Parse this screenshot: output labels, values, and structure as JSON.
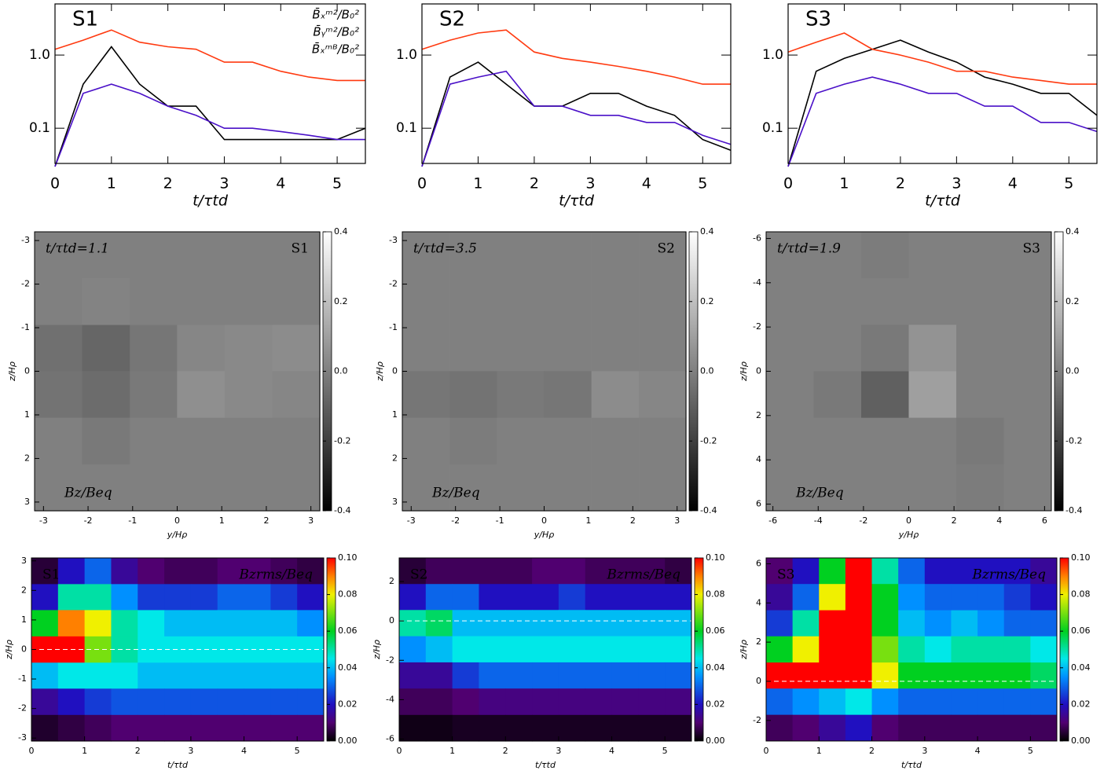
{
  "chart_data": [
    {
      "type": "line",
      "label": "S1",
      "xlabel": "t/τtd",
      "log_y": true,
      "xlim": [
        0,
        5.5
      ],
      "ylim": [
        0.033,
        5
      ],
      "xticks": [
        0,
        1,
        2,
        3,
        4,
        5
      ],
      "yticks": [
        0.1,
        {
          "value": 1,
          "label": "1.0"
        }
      ],
      "x": [
        0,
        0.5,
        1,
        1.5,
        2,
        2.5,
        3,
        3.5,
        4,
        4.5,
        5,
        5.5
      ],
      "series": [
        {
          "name": "B̄ₓᵐ²/B₀²",
          "color": "#000000",
          "values": [
            0.03,
            0.4,
            1.3,
            0.4,
            0.2,
            0.2,
            0.07,
            0.07,
            0.07,
            0.07,
            0.07,
            0.1
          ]
        },
        {
          "name": "B̄ᵧᵐ²/B₀²",
          "color": "#ff3a10",
          "values": [
            1.2,
            1.6,
            2.2,
            1.5,
            1.3,
            1.2,
            0.8,
            0.8,
            0.6,
            0.5,
            0.45,
            0.45
          ]
        },
        {
          "name": "B̄ₓᵐᴮ/B₀²",
          "color": "#4a10c8",
          "values": [
            0.03,
            0.3,
            0.4,
            0.3,
            0.2,
            0.15,
            0.1,
            0.1,
            0.09,
            0.08,
            0.07,
            0.07
          ]
        }
      ]
    },
    {
      "type": "line",
      "label": "S2",
      "xlabel": "t/τtd",
      "log_y": true,
      "xlim": [
        0,
        5.5
      ],
      "ylim": [
        0.033,
        5
      ],
      "xticks": [
        0,
        1,
        2,
        3,
        4,
        5
      ],
      "yticks": [
        0.1,
        {
          "value": 1,
          "label": "1.0"
        }
      ],
      "x": [
        0,
        0.5,
        1,
        1.5,
        2,
        2.5,
        3,
        3.5,
        4,
        4.5,
        5,
        5.5
      ],
      "series": [
        {
          "color": "#000000",
          "values": [
            0.03,
            0.5,
            0.8,
            0.4,
            0.2,
            0.2,
            0.3,
            0.3,
            0.2,
            0.15,
            0.07,
            0.05
          ]
        },
        {
          "color": "#ff3a10",
          "values": [
            1.2,
            1.6,
            2.0,
            2.2,
            1.1,
            0.9,
            0.8,
            0.7,
            0.6,
            0.5,
            0.4,
            0.4
          ]
        },
        {
          "color": "#4a10c8",
          "values": [
            0.03,
            0.4,
            0.5,
            0.6,
            0.2,
            0.2,
            0.15,
            0.15,
            0.12,
            0.12,
            0.08,
            0.06
          ]
        }
      ]
    },
    {
      "type": "line",
      "label": "S3",
      "xlabel": "t/τtd",
      "log_y": true,
      "xlim": [
        0,
        5.5
      ],
      "ylim": [
        0.033,
        5
      ],
      "xticks": [
        0,
        1,
        2,
        3,
        4,
        5
      ],
      "yticks": [
        0.1,
        {
          "value": 1,
          "label": "1.0"
        }
      ],
      "x": [
        0,
        0.5,
        1,
        1.5,
        2,
        2.5,
        3,
        3.5,
        4,
        4.5,
        5,
        5.5
      ],
      "series": [
        {
          "color": "#000000",
          "values": [
            0.03,
            0.6,
            0.9,
            1.2,
            1.6,
            1.1,
            0.8,
            0.5,
            0.4,
            0.3,
            0.3,
            0.15
          ]
        },
        {
          "color": "#ff3a10",
          "values": [
            1.1,
            1.5,
            2.0,
            1.2,
            1.0,
            0.8,
            0.6,
            0.6,
            0.5,
            0.45,
            0.4,
            0.4
          ]
        },
        {
          "color": "#4a10c8",
          "values": [
            0.03,
            0.3,
            0.4,
            0.5,
            0.4,
            0.3,
            0.3,
            0.2,
            0.2,
            0.12,
            0.12,
            0.09
          ]
        }
      ]
    },
    {
      "type": "heatmap",
      "label": "S1",
      "label_position": "top-right",
      "annotation": "t/τtd=1.1",
      "field_label": "Bz/Beq",
      "field_label_position": "bottom-left",
      "xlabel": "y/Hρ",
      "ylabel": "z/Hρ",
      "colormap": "gray",
      "xlim": [
        -3.2,
        3.2
      ],
      "ylim": [
        3.2,
        -3.2
      ],
      "xticks": [
        -3,
        -2,
        -1,
        0,
        1,
        2,
        3
      ],
      "yticks": [
        -3,
        -2,
        -1,
        0,
        1,
        2,
        3
      ],
      "clim": [
        -0.4,
        0.4
      ],
      "cticks": [
        0.4,
        0.2,
        {
          "value": 0,
          "label": "0.0"
        },
        -0.2,
        -0.4
      ],
      "x": [
        -2.67,
        -1.6,
        -0.53,
        0.53,
        1.6,
        2.67
      ],
      "y": [
        -2.67,
        -1.6,
        -0.53,
        0.53,
        1.6,
        2.67
      ],
      "z": [
        [
          0,
          0,
          0,
          0,
          0,
          0
        ],
        [
          0,
          0.01,
          0,
          0,
          0,
          0
        ],
        [
          -0.05,
          -0.08,
          -0.03,
          0.02,
          0.03,
          0.04
        ],
        [
          -0.04,
          -0.06,
          -0.02,
          0.05,
          0.03,
          0.02
        ],
        [
          0,
          -0.02,
          0,
          0,
          0,
          0
        ],
        [
          0,
          0,
          0,
          0,
          0,
          0
        ]
      ]
    },
    {
      "type": "heatmap",
      "label": "S2",
      "label_position": "top-right",
      "annotation": "t/τtd=3.5",
      "field_label": "Bz/Beq",
      "field_label_position": "bottom-left",
      "xlabel": "y/Hρ",
      "ylabel": "z/Hρ",
      "colormap": "gray",
      "xlim": [
        -3.2,
        3.2
      ],
      "ylim": [
        3.2,
        -3.2
      ],
      "xticks": [
        -3,
        -2,
        -1,
        0,
        1,
        2,
        3
      ],
      "yticks": [
        -3,
        -2,
        -1,
        0,
        1,
        2,
        3
      ],
      "clim": [
        -0.4,
        0.4
      ],
      "cticks": [
        0.4,
        0.2,
        {
          "value": 0,
          "label": "0.0"
        },
        -0.2,
        -0.4
      ],
      "x": [
        -2.67,
        -1.6,
        -0.53,
        0.53,
        1.6,
        2.67
      ],
      "y": [
        -2.67,
        -1.6,
        -0.53,
        0.53,
        1.6,
        2.67
      ],
      "z": [
        [
          0,
          0,
          0,
          0,
          0,
          0
        ],
        [
          0,
          0,
          0,
          0,
          0,
          0
        ],
        [
          0,
          0,
          0,
          0,
          0,
          0
        ],
        [
          -0.03,
          -0.04,
          -0.02,
          -0.03,
          0.04,
          0.02
        ],
        [
          0,
          -0.01,
          0,
          0,
          0,
          0
        ],
        [
          0,
          0,
          0,
          0,
          0,
          0
        ]
      ]
    },
    {
      "type": "heatmap",
      "label": "S3",
      "label_position": "top-right",
      "annotation": "t/τtd=1.9",
      "field_label": "Bz/Beq",
      "field_label_position": "bottom-left",
      "xlabel": "y/Hρ",
      "ylabel": "z/Hρ",
      "colormap": "gray",
      "xlim": [
        -6.3,
        6.3
      ],
      "ylim": [
        6.3,
        -6.3
      ],
      "xticks": [
        -6,
        -4,
        -2,
        0,
        2,
        4,
        6
      ],
      "yticks": [
        -6,
        -4,
        -2,
        0,
        2,
        4,
        6
      ],
      "clim": [
        -0.4,
        0.4
      ],
      "cticks": [
        0.4,
        0.2,
        {
          "value": 0,
          "label": "0.0"
        },
        -0.2,
        -0.4
      ],
      "x": [
        -5.25,
        -3.15,
        -1.05,
        1.05,
        3.15,
        5.25
      ],
      "y": [
        -5.25,
        -3.15,
        -1.05,
        1.05,
        3.15,
        5.25
      ],
      "z": [
        [
          0,
          0,
          -0.01,
          0,
          0,
          0
        ],
        [
          0,
          0,
          0,
          0,
          0,
          0
        ],
        [
          0,
          0,
          -0.02,
          0.06,
          0,
          0
        ],
        [
          0,
          -0.02,
          -0.1,
          0.1,
          0,
          0
        ],
        [
          0,
          0,
          0,
          0,
          -0.02,
          0
        ],
        [
          0,
          0,
          0,
          0,
          -0.01,
          0
        ]
      ]
    },
    {
      "type": "heatmap",
      "label": "S1",
      "label_position": "top-left",
      "field_label": "Bzrms/Beq",
      "field_label_position": "top-right",
      "xlabel": "t/τtd",
      "ylabel": "z/Hρ",
      "colormap": "rainbow",
      "xlim": [
        0,
        5.5
      ],
      "ylim": [
        -3.1,
        3.1
      ],
      "xticks": [
        0,
        1,
        2,
        3,
        4,
        5
      ],
      "yticks": [
        -3,
        -2,
        -1,
        0,
        1,
        2,
        3
      ],
      "clim": [
        0,
        0.1
      ],
      "cticks": [
        {
          "value": 0.1,
          "label": "0.10"
        },
        {
          "value": 0.08,
          "label": "0.08"
        },
        {
          "value": 0.06,
          "label": "0.06"
        },
        {
          "value": 0.04,
          "label": "0.04"
        },
        {
          "value": 0.02,
          "label": "0.02"
        },
        {
          "value": 0,
          "label": "0.00"
        }
      ],
      "x": [
        0.25,
        0.75,
        1.25,
        1.75,
        2.25,
        2.75,
        3.25,
        3.75,
        4.25,
        4.75,
        5.25
      ],
      "y": [
        2.66,
        1.77,
        0.89,
        0,
        -0.89,
        -1.77,
        -2.66
      ],
      "z": [
        [
          0.005,
          0.02,
          0.03,
          0.015,
          0.01,
          0.008,
          0.008,
          0.01,
          0.01,
          0.008,
          0.006
        ],
        [
          0.02,
          0.05,
          0.05,
          0.035,
          0.025,
          0.025,
          0.025,
          0.03,
          0.03,
          0.025,
          0.02
        ],
        [
          0.06,
          0.09,
          0.08,
          0.05,
          0.045,
          0.04,
          0.04,
          0.04,
          0.04,
          0.04,
          0.035
        ],
        [
          0.1,
          0.1,
          0.07,
          0.05,
          0.045,
          0.045,
          0.045,
          0.045,
          0.045,
          0.045,
          0.045
        ],
        [
          0.04,
          0.045,
          0.045,
          0.045,
          0.04,
          0.04,
          0.04,
          0.04,
          0.04,
          0.04,
          0.04
        ],
        [
          0.015,
          0.02,
          0.025,
          0.028,
          0.028,
          0.028,
          0.028,
          0.028,
          0.028,
          0.028,
          0.028
        ],
        [
          0.004,
          0.006,
          0.008,
          0.01,
          0.01,
          0.01,
          0.01,
          0.01,
          0.01,
          0.01,
          0.01
        ]
      ]
    },
    {
      "type": "heatmap",
      "label": "S2",
      "label_position": "top-left",
      "field_label": "Bzrms/Beq",
      "field_label_position": "top-right",
      "xlabel": "t/τtd",
      "ylabel": "z/Hρ",
      "colormap": "rainbow",
      "xlim": [
        0,
        5.5
      ],
      "ylim": [
        -6.1,
        3.2
      ],
      "xticks": [
        0,
        1,
        2,
        3,
        4,
        5
      ],
      "yticks": [
        -6,
        -4,
        -2,
        0,
        2
      ],
      "clim": [
        0,
        0.1
      ],
      "cticks": [
        {
          "value": 0.1,
          "label": "0.10"
        },
        {
          "value": 0.08,
          "label": "0.08"
        },
        {
          "value": 0.06,
          "label": "0.06"
        },
        {
          "value": 0.04,
          "label": "0.04"
        },
        {
          "value": 0.02,
          "label": "0.02"
        },
        {
          "value": 0,
          "label": "0.00"
        }
      ],
      "x": [
        0.25,
        0.75,
        1.25,
        1.75,
        2.25,
        2.75,
        3.25,
        3.75,
        4.25,
        4.75,
        5.25
      ],
      "y": [
        2.54,
        1.21,
        -0.11,
        -1.44,
        -2.77,
        -4.1,
        -5.44
      ],
      "z": [
        [
          0.005,
          0.008,
          0.008,
          0.008,
          0.008,
          0.01,
          0.01,
          0.008,
          0.008,
          0.008,
          0.006
        ],
        [
          0.02,
          0.03,
          0.03,
          0.02,
          0.02,
          0.02,
          0.025,
          0.02,
          0.02,
          0.02,
          0.02
        ],
        [
          0.05,
          0.055,
          0.04,
          0.04,
          0.04,
          0.04,
          0.04,
          0.04,
          0.04,
          0.04,
          0.04
        ],
        [
          0.035,
          0.04,
          0.045,
          0.045,
          0.045,
          0.045,
          0.045,
          0.045,
          0.045,
          0.045,
          0.045
        ],
        [
          0.015,
          0.015,
          0.025,
          0.03,
          0.03,
          0.03,
          0.03,
          0.03,
          0.03,
          0.03,
          0.03
        ],
        [
          0.008,
          0.008,
          0.01,
          0.012,
          0.012,
          0.012,
          0.012,
          0.012,
          0.012,
          0.012,
          0.012
        ],
        [
          0.002,
          0.002,
          0.003,
          0.003,
          0.003,
          0.003,
          0.003,
          0.003,
          0.003,
          0.003,
          0.003
        ]
      ]
    },
    {
      "type": "heatmap",
      "label": "S3",
      "label_position": "top-left",
      "field_label": "Bzrms/Beq",
      "field_label_position": "top-right",
      "xlabel": "t/τtd",
      "ylabel": "z/Hρ",
      "colormap": "rainbow",
      "xlim": [
        0,
        5.5
      ],
      "ylim": [
        -3.05,
        6.3
      ],
      "xticks": [
        0,
        1,
        2,
        3,
        4,
        5
      ],
      "yticks": [
        -2,
        0,
        2,
        4,
        6
      ],
      "clim": [
        0,
        0.1
      ],
      "cticks": [
        {
          "value": 0.1,
          "label": "0.10"
        },
        {
          "value": 0.08,
          "label": "0.08"
        },
        {
          "value": 0.06,
          "label": "0.06"
        },
        {
          "value": 0.04,
          "label": "0.04"
        },
        {
          "value": 0.02,
          "label": "0.02"
        },
        {
          "value": 0,
          "label": "0.00"
        }
      ],
      "x": [
        0.25,
        0.75,
        1.25,
        1.75,
        2.25,
        2.75,
        3.25,
        3.75,
        4.25,
        4.75,
        5.25
      ],
      "y": [
        5.63,
        4.3,
        2.96,
        1.63,
        0.29,
        -1.04,
        -2.38
      ],
      "z": [
        [
          0.01,
          0.02,
          0.06,
          0.1,
          0.05,
          0.03,
          0.02,
          0.02,
          0.02,
          0.02,
          0.015
        ],
        [
          0.015,
          0.03,
          0.08,
          0.1,
          0.06,
          0.035,
          0.03,
          0.03,
          0.03,
          0.025,
          0.02
        ],
        [
          0.025,
          0.05,
          0.1,
          0.1,
          0.06,
          0.04,
          0.035,
          0.04,
          0.035,
          0.03,
          0.03
        ],
        [
          0.06,
          0.08,
          0.1,
          0.1,
          0.07,
          0.05,
          0.045,
          0.05,
          0.05,
          0.05,
          0.045
        ],
        [
          0.1,
          0.1,
          0.1,
          0.1,
          0.08,
          0.06,
          0.06,
          0.06,
          0.06,
          0.06,
          0.055
        ],
        [
          0.03,
          0.035,
          0.04,
          0.045,
          0.035,
          0.03,
          0.03,
          0.03,
          0.03,
          0.03,
          0.03
        ],
        [
          0.008,
          0.01,
          0.015,
          0.02,
          0.01,
          0.008,
          0.008,
          0.008,
          0.008,
          0.008,
          0.008
        ]
      ]
    }
  ]
}
